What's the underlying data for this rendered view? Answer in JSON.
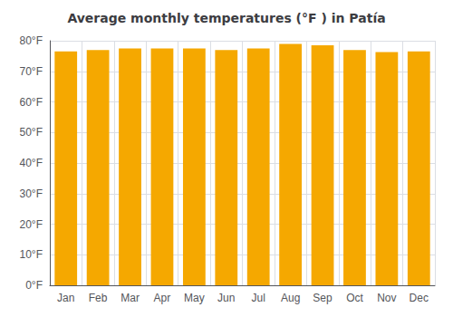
{
  "chart_data": {
    "type": "bar",
    "title": "Average monthly temperatures (°F ) in Patía",
    "categories": [
      "Jan",
      "Feb",
      "Mar",
      "Apr",
      "May",
      "Jun",
      "Jul",
      "Aug",
      "Sep",
      "Oct",
      "Nov",
      "Dec"
    ],
    "values": [
      76.5,
      77.0,
      77.5,
      77.5,
      77.5,
      77.0,
      77.5,
      79.0,
      78.5,
      77.0,
      76.3,
      76.5
    ],
    "color": "#F5A800",
    "ylim": [
      0,
      80
    ],
    "yticks": [
      {
        "value": 0,
        "label": "0°F"
      },
      {
        "value": 10,
        "label": "10°F"
      },
      {
        "value": 20,
        "label": "20°F"
      },
      {
        "value": 30,
        "label": "30°F"
      },
      {
        "value": 40,
        "label": "40°F"
      },
      {
        "value": 50,
        "label": "50°F"
      },
      {
        "value": 60,
        "label": "60°F"
      },
      {
        "value": 70,
        "label": "70°F"
      },
      {
        "value": 80,
        "label": "80°F"
      }
    ],
    "grid": true
  }
}
